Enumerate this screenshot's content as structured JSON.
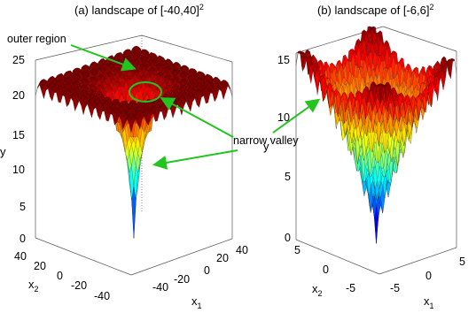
{
  "figure": {
    "panels": [
      {
        "title": "(a) landscape of [-40,40]",
        "title_sup": "2",
        "ylabel": "y",
        "x1label": "x",
        "x1sub": "1",
        "x2label": "x",
        "x2sub": "2",
        "yticks": [
          "0",
          "5",
          "10",
          "15",
          "20",
          "25"
        ],
        "x1ticks": [
          "-40",
          "-20",
          "0",
          "20",
          "40"
        ],
        "x2ticks": [
          "40",
          "20",
          "0",
          "-20",
          "-40"
        ]
      },
      {
        "title": "(b) landscape of [-6,6]",
        "title_sup": "2",
        "ylabel": "y",
        "x1label": "x",
        "x1sub": "1",
        "x2label": "x",
        "x2sub": "2",
        "yticks": [
          "0",
          "5",
          "10",
          "15"
        ],
        "x1ticks": [
          "-5",
          "0",
          "5"
        ],
        "x2ticks": [
          "5",
          "0",
          "-5"
        ]
      }
    ],
    "annotations": {
      "outer_region": "outer region",
      "narrow_valley": "narrow valley"
    },
    "colors": {
      "arrow": "#22c41e",
      "colormap": "jet"
    }
  },
  "chart_data": [
    {
      "type": "surface",
      "title": "(a) landscape of [-40,40]^2",
      "xlabel": "x1",
      "ylabel": "x2",
      "zlabel": "y",
      "xlim": [
        -40,
        40
      ],
      "ylim": [
        -40,
        40
      ],
      "zlim": [
        0,
        25
      ],
      "grid": true,
      "colormap": "jet",
      "features": {
        "min_value_at_origin": 0,
        "outer_region_level": 21
      },
      "annotations": [
        "outer region",
        "narrow valley"
      ]
    },
    {
      "type": "surface",
      "title": "(b) landscape of [-6,6]^2",
      "xlabel": "x1",
      "ylabel": "x2",
      "zlabel": "y",
      "xlim": [
        -6,
        6
      ],
      "ylim": [
        -6,
        6
      ],
      "zlim": [
        0,
        15
      ],
      "grid": true,
      "colormap": "jet",
      "features": {
        "min_value_at_origin": 0,
        "corner_level": 15
      }
    }
  ]
}
